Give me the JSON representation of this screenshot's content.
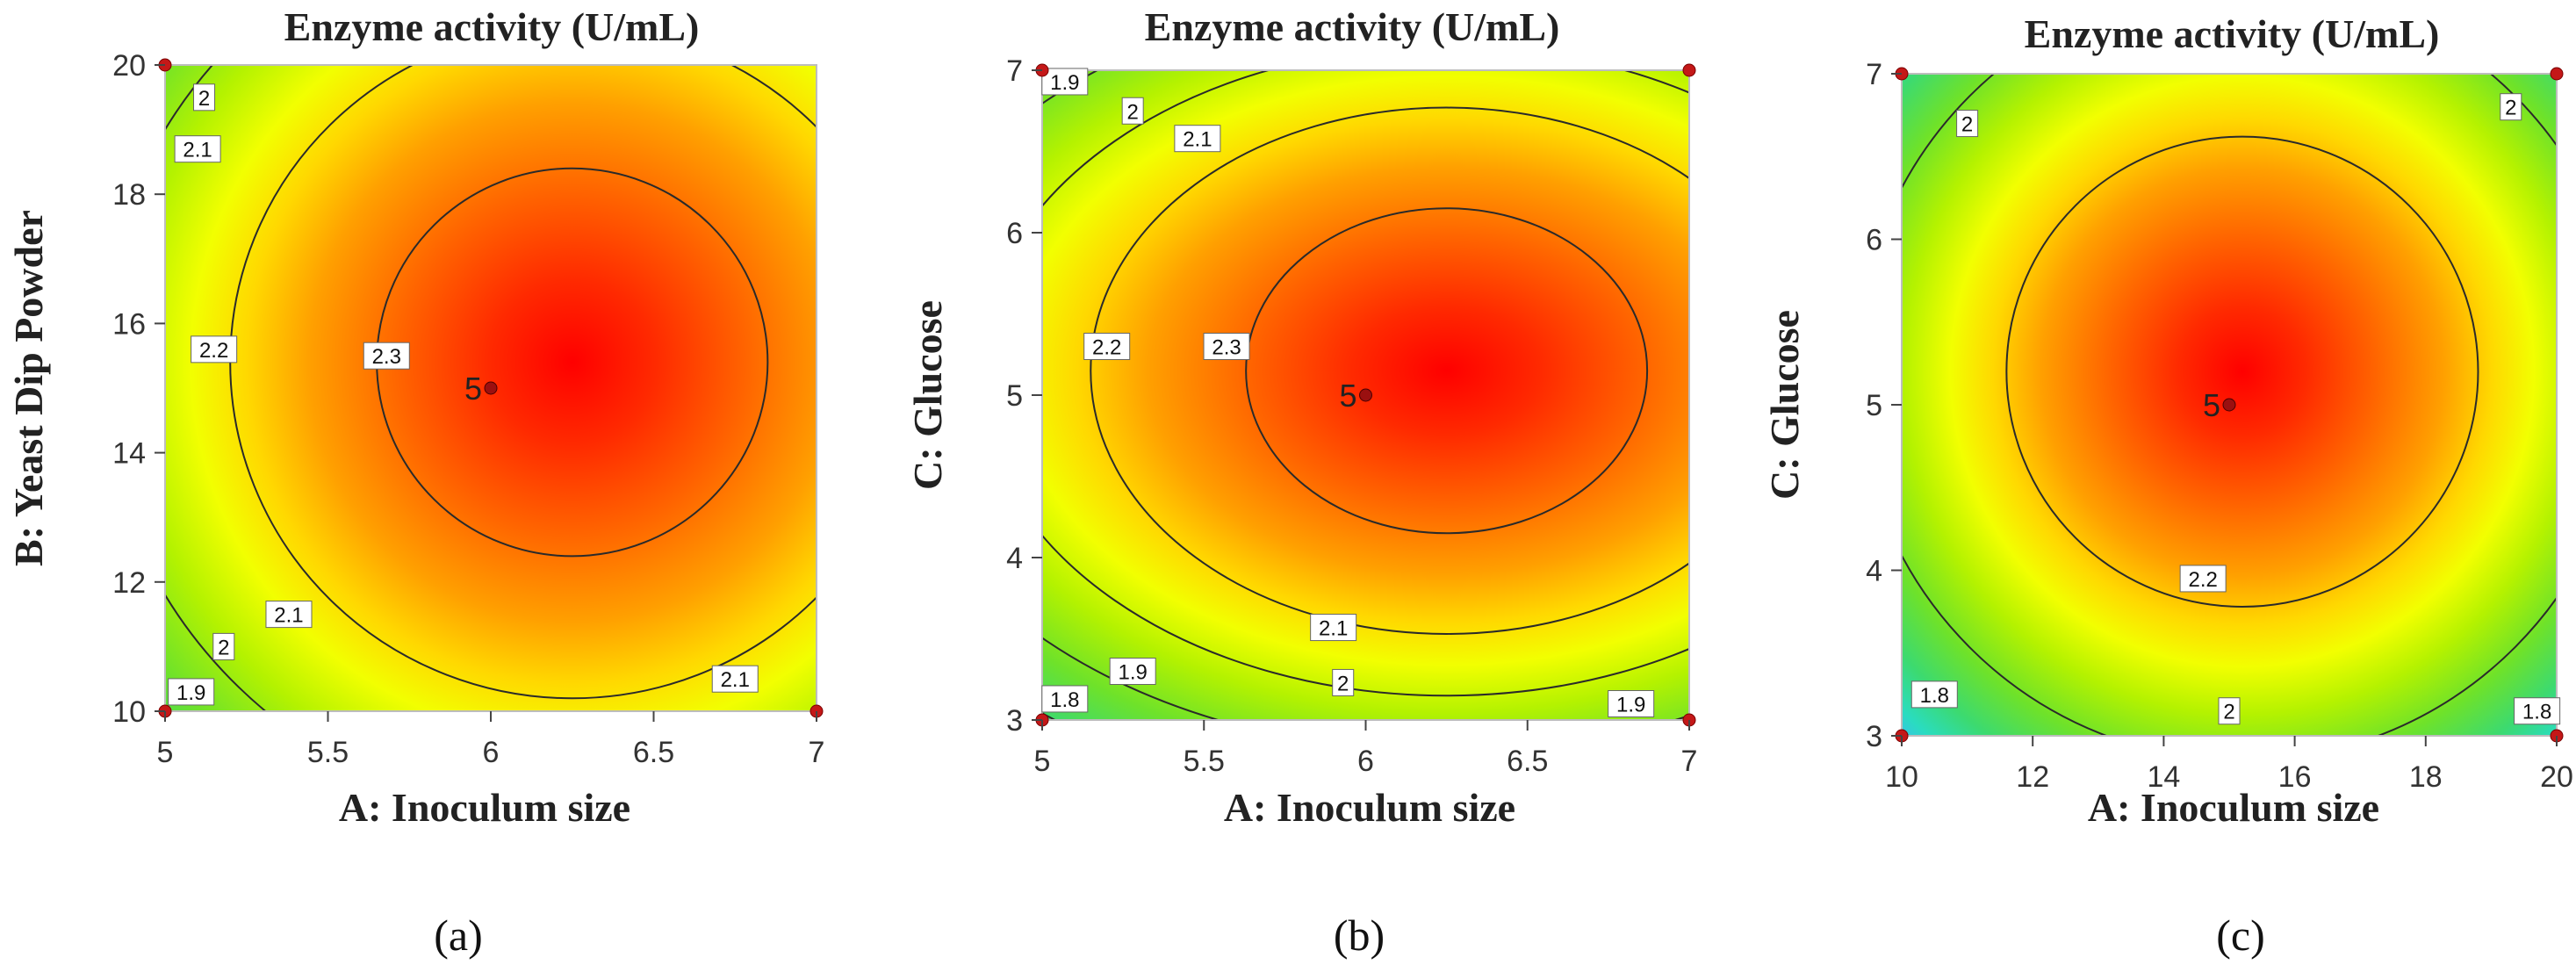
{
  "chart_data": [
    {
      "type": "contour",
      "panel": "a",
      "caption": "(a)",
      "title": "Enzyme activity (U/mL)",
      "xlabel": "A: Inoculum size",
      "ylabel": "B: Yeast Dip Powder",
      "xlim": [
        5,
        7
      ],
      "ylim": [
        10,
        20
      ],
      "xticks": [
        "5",
        "5.5",
        "6",
        "6.5",
        "7"
      ],
      "yticks": [
        "10",
        "12",
        "14",
        "16",
        "18",
        "20"
      ],
      "optimum": {
        "x": 6.25,
        "y": 15.4
      },
      "center_point": {
        "x": 6,
        "y": 15,
        "label": "5"
      },
      "design_points": [
        {
          "x": 5,
          "y": 20
        },
        {
          "x": 5,
          "y": 10
        },
        {
          "x": 7,
          "y": 10
        }
      ],
      "contours": [
        {
          "level": "2.3",
          "rx": 0.6,
          "ry": 3.0
        },
        {
          "level": "2.2",
          "rx": 1.05,
          "ry": 5.2
        },
        {
          "level": "2.1",
          "rx": 1.45,
          "ry": 7.1
        },
        {
          "level": "2",
          "rx": 1.7,
          "ry": 8.5
        },
        {
          "level": "1.9",
          "rx": 1.97,
          "ry": 9.8
        }
      ],
      "contour_labels": [
        {
          "text": "2",
          "x": 5.12,
          "y": 19.5
        },
        {
          "text": "2.1",
          "x": 5.1,
          "y": 18.7
        },
        {
          "text": "2.2",
          "x": 5.15,
          "y": 15.6
        },
        {
          "text": "2.3",
          "x": 5.68,
          "y": 15.5
        },
        {
          "text": "2.1",
          "x": 5.38,
          "y": 11.5
        },
        {
          "text": "2",
          "x": 5.18,
          "y": 11.0
        },
        {
          "text": "1.9",
          "x": 5.08,
          "y": 10.3
        },
        {
          "text": "2.1",
          "x": 6.75,
          "y": 10.5
        }
      ]
    },
    {
      "type": "contour",
      "panel": "b",
      "caption": "(b)",
      "title": "Enzyme activity (U/mL)",
      "xlabel": "A: Inoculum size",
      "ylabel": "C: Glucose",
      "xlim": [
        5,
        7
      ],
      "ylim": [
        3,
        7
      ],
      "xticks": [
        "5",
        "5.5",
        "6",
        "6.5",
        "7"
      ],
      "yticks": [
        "3",
        "4",
        "5",
        "6",
        "7"
      ],
      "optimum": {
        "x": 6.25,
        "y": 5.15
      },
      "center_point": {
        "x": 6,
        "y": 5,
        "label": "5"
      },
      "design_points": [
        {
          "x": 5,
          "y": 7
        },
        {
          "x": 7,
          "y": 7
        },
        {
          "x": 5,
          "y": 3
        },
        {
          "x": 7,
          "y": 3
        }
      ],
      "contours": [
        {
          "level": "2.3",
          "rx": 0.62,
          "ry": 1.0
        },
        {
          "level": "2.2",
          "rx": 1.1,
          "ry": 1.62
        },
        {
          "level": "2.1",
          "rx": 1.45,
          "ry": 2.0
        },
        {
          "level": "2",
          "rx": 1.75,
          "ry": 2.35
        },
        {
          "level": "1.9",
          "rx": 2.0,
          "ry": 2.7
        },
        {
          "level": "1.8",
          "rx": 2.25,
          "ry": 3.05
        }
      ],
      "contour_labels": [
        {
          "text": "1.9",
          "x": 5.07,
          "y": 6.93
        },
        {
          "text": "2",
          "x": 5.28,
          "y": 6.75
        },
        {
          "text": "2.1",
          "x": 5.48,
          "y": 6.58
        },
        {
          "text": "2.2",
          "x": 5.2,
          "y": 5.3
        },
        {
          "text": "2.3",
          "x": 5.57,
          "y": 5.3
        },
        {
          "text": "2.1",
          "x": 5.9,
          "y": 3.57
        },
        {
          "text": "1.9",
          "x": 5.28,
          "y": 3.3
        },
        {
          "text": "2",
          "x": 5.93,
          "y": 3.23
        },
        {
          "text": "1.8",
          "x": 5.07,
          "y": 3.13
        },
        {
          "text": "1.9",
          "x": 6.82,
          "y": 3.1
        }
      ]
    },
    {
      "type": "contour",
      "panel": "c",
      "caption": "(c)",
      "title": "Enzyme activity (U/mL)",
      "xlabel": "A: Inoculum size",
      "ylabel": "C: Glucose",
      "xlim": [
        10,
        20
      ],
      "ylim": [
        3,
        7
      ],
      "xticks": [
        "10",
        "12",
        "14",
        "16",
        "18",
        "20"
      ],
      "yticks": [
        "3",
        "4",
        "5",
        "6",
        "7"
      ],
      "optimum": {
        "x": 15.2,
        "y": 5.2
      },
      "center_point": {
        "x": 15,
        "y": 5,
        "label": "5"
      },
      "design_points": [
        {
          "x": 10,
          "y": 7
        },
        {
          "x": 20,
          "y": 7
        },
        {
          "x": 10,
          "y": 3
        },
        {
          "x": 20,
          "y": 3
        }
      ],
      "contours": [
        {
          "level": "2.2",
          "rx": 3.6,
          "ry": 1.42
        },
        {
          "level": "2",
          "rx": 5.9,
          "ry": 2.35
        },
        {
          "level": "1.8",
          "rx": 7.5,
          "ry": 3.0
        }
      ],
      "contour_labels": [
        {
          "text": "2",
          "x": 11.0,
          "y": 6.7
        },
        {
          "text": "2",
          "x": 19.3,
          "y": 6.8
        },
        {
          "text": "2.2",
          "x": 14.6,
          "y": 3.95
        },
        {
          "text": "2",
          "x": 15.0,
          "y": 3.15
        },
        {
          "text": "1.8",
          "x": 10.5,
          "y": 3.25
        },
        {
          "text": "1.8",
          "x": 19.7,
          "y": 3.15
        }
      ]
    }
  ]
}
